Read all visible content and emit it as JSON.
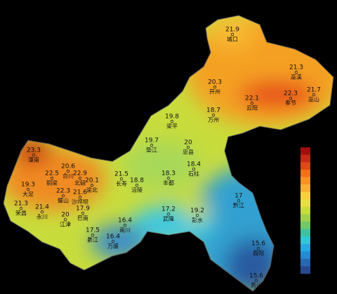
{
  "stations": [
    {
      "value": 21.9,
      "name": "城口"
    },
    {
      "value": 21.3,
      "name": "巫溪"
    },
    {
      "value": 20.3,
      "name": "开州"
    },
    {
      "value": 22.1,
      "name": "云阳"
    },
    {
      "value": 22.3,
      "name": "奉节"
    },
    {
      "value": 21.7,
      "name": "巫山"
    },
    {
      "value": 19.8,
      "name": "梁平"
    },
    {
      "value": 18.7,
      "name": "万州"
    },
    {
      "value": 19.7,
      "name": "垫江"
    },
    {
      "value": 20,
      "name": "忠县"
    },
    {
      "value": 23.3,
      "name": "潼南"
    },
    {
      "value": 20.6,
      "name": "合川"
    },
    {
      "value": 22.9,
      "name": "北碚"
    },
    {
      "value": 22.5,
      "name": "铜梁"
    },
    {
      "value": 21.5,
      "name": "长寿"
    },
    {
      "value": 18.3,
      "name": "丰都"
    },
    {
      "value": 18.4,
      "name": "石柱"
    },
    {
      "value": 19.3,
      "name": "大足"
    },
    {
      "value": 20.1,
      "name": "渝北"
    },
    {
      "value": 18.8,
      "name": "涪陵"
    },
    {
      "value": 22.3,
      "name": "璧山"
    },
    {
      "value": 21.6,
      "name": "沙坪坝"
    },
    {
      "value": 21.3,
      "name": "荣昌"
    },
    {
      "value": 21.4,
      "name": "永川"
    },
    {
      "value": 17.9,
      "name": "巴南"
    },
    {
      "value": 20,
      "name": "江津"
    },
    {
      "value": 17,
      "name": "黔江"
    },
    {
      "value": 17.2,
      "name": "武隆"
    },
    {
      "value": 19.2,
      "name": "彭水"
    },
    {
      "value": 16.4,
      "name": "南川"
    },
    {
      "value": 17.5,
      "name": "綦江"
    },
    {
      "value": 16.4,
      "name": "万盛"
    },
    {
      "value": 15.6,
      "name": "酉阳"
    },
    {
      "value": 15.6,
      "name": "秀山"
    }
  ]
}
